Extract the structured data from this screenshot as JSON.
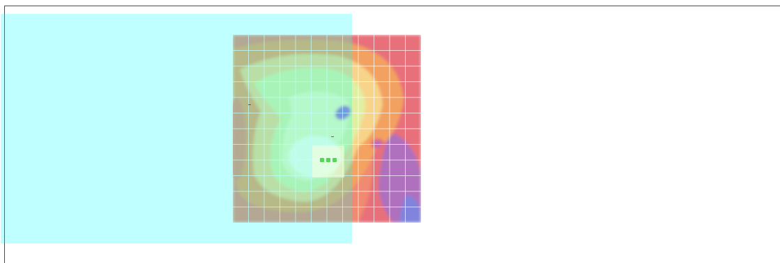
{
  "map_view": {
    "overlay_color": "#00ffff",
    "gridline_color": "#ffffff",
    "heatmap_palette": {
      "center": "#fffce0",
      "light": "#f2f7b8",
      "mid": "#e0f0a0",
      "warm": "#f7d48a",
      "orange": "#f3a35f",
      "salmon": "#f08a6f",
      "pink": "#e76d7b",
      "purple": "#a56ec9",
      "blue": "#7b86e0"
    },
    "center_marker": {
      "icon": "loading-dots-icon",
      "color": "#55d655"
    }
  }
}
